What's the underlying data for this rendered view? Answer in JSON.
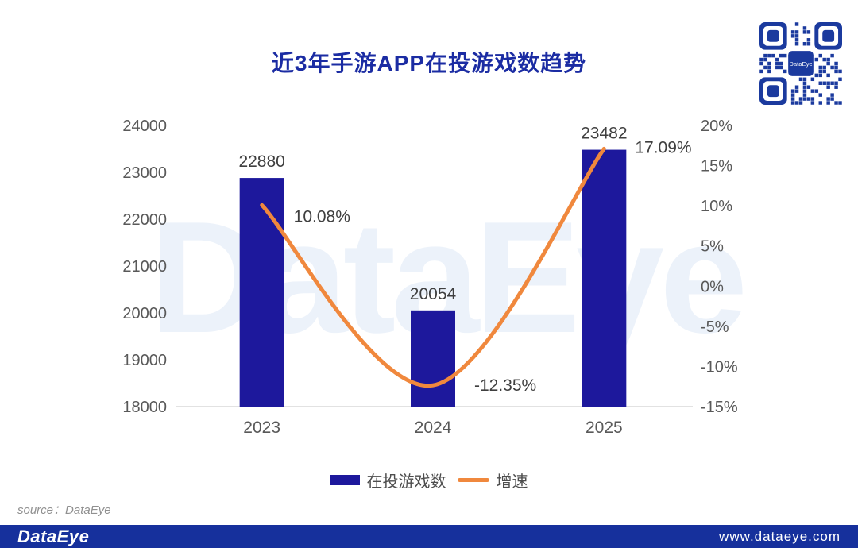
{
  "title": "近3年手游APP在投游戏数趋势",
  "watermark_text": "DataEye",
  "qr_code": {
    "center_label": "DataEye",
    "color": "#1b3a9e"
  },
  "source_note": "source：DataEye",
  "footer": {
    "logo_text": "DataEye",
    "url_text": "www.dataeye.com",
    "background": "#16309c"
  },
  "colors": {
    "title_text": "#1b2ca3",
    "bar": "#1d189c",
    "line": "#f0883d",
    "axis_text": "#595959",
    "value_label_text": "#3f3f3f",
    "axis_line": "#d9d9d9",
    "watermark": "#ecf2fa"
  },
  "chart_data": {
    "type": "combo: bar + smooth line",
    "title": "近3年手游APP在投游戏数趋势",
    "categories": [
      "2023",
      "2024",
      "2025"
    ],
    "series": [
      {
        "name": "在投游戏数",
        "type": "bar",
        "axis": "left",
        "values": [
          22880,
          20054,
          23482
        ],
        "labels": [
          "22880",
          "20054",
          "23482"
        ],
        "color": "#1d189c"
      },
      {
        "name": "增速",
        "type": "line",
        "axis": "right",
        "values": [
          10.08,
          -12.35,
          17.09
        ],
        "labels": [
          "10.08%",
          "-12.35%",
          "17.09%"
        ],
        "color": "#f0883d"
      }
    ],
    "left_axis": {
      "min": 18000,
      "max": 24000,
      "tick_step": 1000,
      "tick_labels": [
        "24000",
        "23000",
        "22000",
        "21000",
        "20000",
        "19000",
        "18000"
      ]
    },
    "right_axis": {
      "min": -15,
      "max": 20,
      "tick_step": 5,
      "tick_labels": [
        "20%",
        "15%",
        "10%",
        "5%",
        "0%",
        "-5%",
        "-10%",
        "-15%"
      ]
    },
    "grid": false,
    "legend_position": "bottom"
  }
}
